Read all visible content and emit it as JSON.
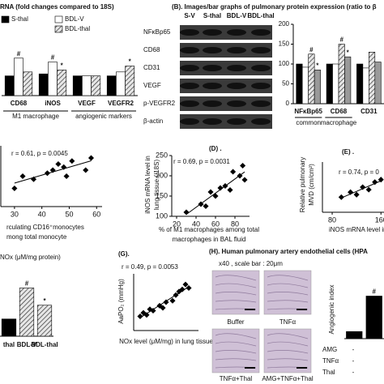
{
  "chart_data": [
    {
      "type": "bar",
      "title": "RNA (fold changes compared to 18S)",
      "categories": [
        "CD68",
        "iNOS",
        "VEGF",
        "VEGFR2"
      ],
      "group_labels": [
        "M1 macrophage",
        "angiogenic markers"
      ],
      "ylim": [
        0,
        3
      ],
      "series": [
        {
          "name": "S-thal",
          "color": "#000000",
          "values": [
            1.0,
            1.1,
            1.0,
            1.0
          ]
        },
        {
          "name": "BDL-V",
          "color": "#ffffff",
          "values": [
            1.9,
            1.7,
            1.0,
            1.2
          ],
          "annotations": [
            "#",
            "#",
            null,
            null
          ]
        },
        {
          "name": "BDL-thal",
          "color": "#cccccc",
          "hatch": true,
          "values": [
            1.2,
            1.3,
            1.0,
            1.5
          ],
          "annotations": [
            null,
            "*",
            null,
            "*"
          ]
        }
      ]
    },
    {
      "type": "bar",
      "categories": [
        "NFκBp65",
        "CD68",
        "CD31"
      ],
      "group_labels": [
        "common",
        "macrophage"
      ],
      "ylim": [
        0,
        200
      ],
      "yticks": [
        0,
        50,
        100,
        150,
        200
      ],
      "series": [
        {
          "color": "#000000",
          "values": [
            100,
            100,
            100
          ]
        },
        {
          "color": "#ffffff",
          "values": [
            92,
            100,
            90
          ]
        },
        {
          "color": "#cccccc",
          "hatch": true,
          "values": [
            125,
            150,
            130
          ],
          "annotations": [
            "#",
            "#",
            null
          ]
        },
        {
          "color": "#999999",
          "values": [
            85,
            118,
            105
          ],
          "annotations": [
            "*",
            "*",
            null
          ]
        }
      ]
    },
    {
      "type": "scatter",
      "stat": "r = 0.61, p = 0.0045",
      "xlabel": [
        "rculating CD16⁺monocytes",
        "mong total monocyte"
      ],
      "xlim": [
        25,
        62
      ],
      "xticks": [
        30,
        40,
        50,
        60
      ],
      "ylim": [
        0,
        10
      ],
      "x": [
        30,
        33,
        37,
        42,
        44,
        46,
        48,
        49,
        51,
        56,
        58
      ],
      "values": [
        3,
        5,
        4.5,
        5.5,
        6,
        7,
        6.5,
        5,
        7.5,
        6,
        8
      ]
    },
    {
      "type": "scatter",
      "label": "(D) .",
      "stat": "r = 0.69, p = 0.0031",
      "ylabel": [
        "iNOS mRNA level in",
        "lung tissue (/18S)"
      ],
      "xlabel": [
        "% of M1 macrophages among total",
        "macrophages in BAL fluid"
      ],
      "xlim": [
        15,
        95
      ],
      "xticks": [
        20,
        40,
        60,
        80
      ],
      "ylim": [
        100,
        250
      ],
      "yticks": [
        100,
        150,
        200,
        250
      ],
      "x": [
        30,
        45,
        50,
        55,
        60,
        65,
        70,
        75,
        78,
        85,
        88,
        90
      ],
      "values": [
        110,
        130,
        125,
        160,
        150,
        170,
        175,
        165,
        210,
        200,
        225,
        190
      ]
    },
    {
      "type": "scatter",
      "label": "(E) .",
      "stat": "r = 0.74, p = 0",
      "ylabel": [
        "Relative pulmonary",
        "MVD (cm/cm²)"
      ],
      "xlabel": [
        "iNOS mRNA level in"
      ],
      "xlim": [
        64,
        165
      ],
      "xticks": [
        80,
        160
      ],
      "ylim": [
        0,
        10
      ],
      "x": [
        95,
        110,
        120,
        130,
        140,
        150,
        160
      ],
      "values": [
        3,
        4,
        3.5,
        5,
        4.5,
        6,
        6.5
      ]
    },
    {
      "type": "bar",
      "ylabel": "NOx (μM/mg protein)",
      "categories": [
        "thal",
        "BDL-V",
        "BDL-thal"
      ],
      "ylim": [
        0,
        10
      ],
      "series": [
        {
          "colors": [
            "#000000",
            "#eeeeee",
            "#cccccc"
          ],
          "hatch": [
            false,
            true,
            true
          ],
          "values": [
            2.5,
            7,
            4.5
          ],
          "annotations": [
            null,
            "#",
            "*"
          ]
        }
      ]
    },
    {
      "type": "scatter",
      "label": "(G).",
      "stat": "r = 0.49, p = 0.0053",
      "ylabel": "AaPO₂ (mmHg)",
      "xlabel": [
        "NOx level (μM/mg) in lung tissue"
      ],
      "xlim": [
        0,
        100
      ],
      "ylim": [
        0,
        80
      ],
      "x": [
        10,
        15,
        20,
        25,
        30,
        40,
        45,
        50,
        60,
        65,
        70,
        75,
        80,
        85
      ],
      "values": [
        20,
        25,
        22,
        30,
        28,
        35,
        32,
        40,
        42,
        50,
        55,
        58,
        65,
        60
      ]
    },
    {
      "type": "bar",
      "ylabel": "Angiogenic index",
      "ylim": [
        0,
        10
      ],
      "series": [
        {
          "colors": [
            "#000000",
            "#000000"
          ],
          "values": [
            1.2,
            7.2
          ],
          "annotations": [
            null,
            "#"
          ]
        }
      ]
    }
  ],
  "blot": {
    "title": "(B). Images/bar graphs of pulmonary protein expression (ratio to β",
    "lanes": [
      "S-V",
      "S-thal",
      "BDL-V",
      "BDL-thal"
    ],
    "rows": [
      "NFκBp65",
      "CD68",
      "CD31",
      "VEGF",
      "p-VEGFR2",
      "β-actin"
    ]
  },
  "micrographs": {
    "title": "(H). Human pulmonary artery endothelial cells (HPA",
    "scale": "x40 , scale bar : 20μm",
    "panels": [
      "Buffer",
      "TNFα",
      "TNFα+Thal",
      "AMG+TNFα+Thal"
    ]
  },
  "treatment_table": [
    {
      "label": "AMG",
      "cells": [
        "-"
      ]
    },
    {
      "label": "TNFα",
      "cells": [
        "-"
      ]
    },
    {
      "label": "Thal",
      "cells": [
        "-"
      ]
    }
  ]
}
